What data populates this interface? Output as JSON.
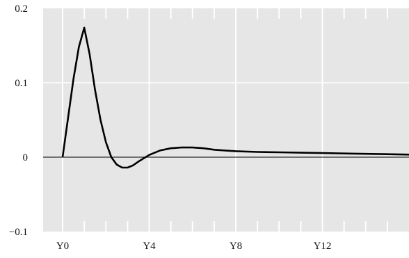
{
  "colors": {
    "plot_background": "#e6e6e6",
    "gridline": "#ffffff",
    "tick_mark": "#ffffff",
    "zero_line": "#000000",
    "series_line": "#000000"
  },
  "chart_data": {
    "type": "line",
    "title": "",
    "xlabel": "",
    "ylabel": "",
    "xlim": [
      -0.9,
      16
    ],
    "ylim": [
      -0.1,
      0.2
    ],
    "grid": true,
    "legend": "none",
    "x_ticks": [
      {
        "value": 0,
        "label": "Y0"
      },
      {
        "value": 4,
        "label": "Y4"
      },
      {
        "value": 8,
        "label": "Y8"
      },
      {
        "value": 12,
        "label": "Y12"
      }
    ],
    "x_minor_ticks": [
      1,
      2,
      3,
      5,
      6,
      7,
      9,
      10,
      11,
      13,
      14,
      15
    ],
    "y_ticks": [
      {
        "value": 0.2,
        "label": "0.2"
      },
      {
        "value": 0.1,
        "label": "0.1"
      },
      {
        "value": 0,
        "label": "0"
      },
      {
        "value": -0.1,
        "label": "−0.1"
      }
    ],
    "reference_line": 0,
    "series": [
      {
        "x": [
          0,
          0.5,
          0.75,
          1.0,
          1.25,
          1.5,
          1.75,
          2.0,
          2.25,
          2.5,
          2.75,
          3.0,
          3.25,
          3.5,
          4.0,
          4.5,
          5.0,
          5.5,
          6.0,
          6.5,
          7.0,
          7.5,
          8.0,
          9.0,
          10.0,
          11.0,
          12.0,
          13.0,
          14.0,
          15.0,
          16.0
        ],
        "y": [
          0,
          0.105,
          0.148,
          0.174,
          0.138,
          0.09,
          0.05,
          0.02,
          0.0,
          -0.01,
          -0.014,
          -0.014,
          -0.011,
          -0.006,
          0.003,
          0.009,
          0.012,
          0.013,
          0.013,
          0.012,
          0.01,
          0.009,
          0.008,
          0.007,
          0.0065,
          0.006,
          0.0055,
          0.005,
          0.0045,
          0.004,
          0.0035
        ]
      }
    ]
  }
}
